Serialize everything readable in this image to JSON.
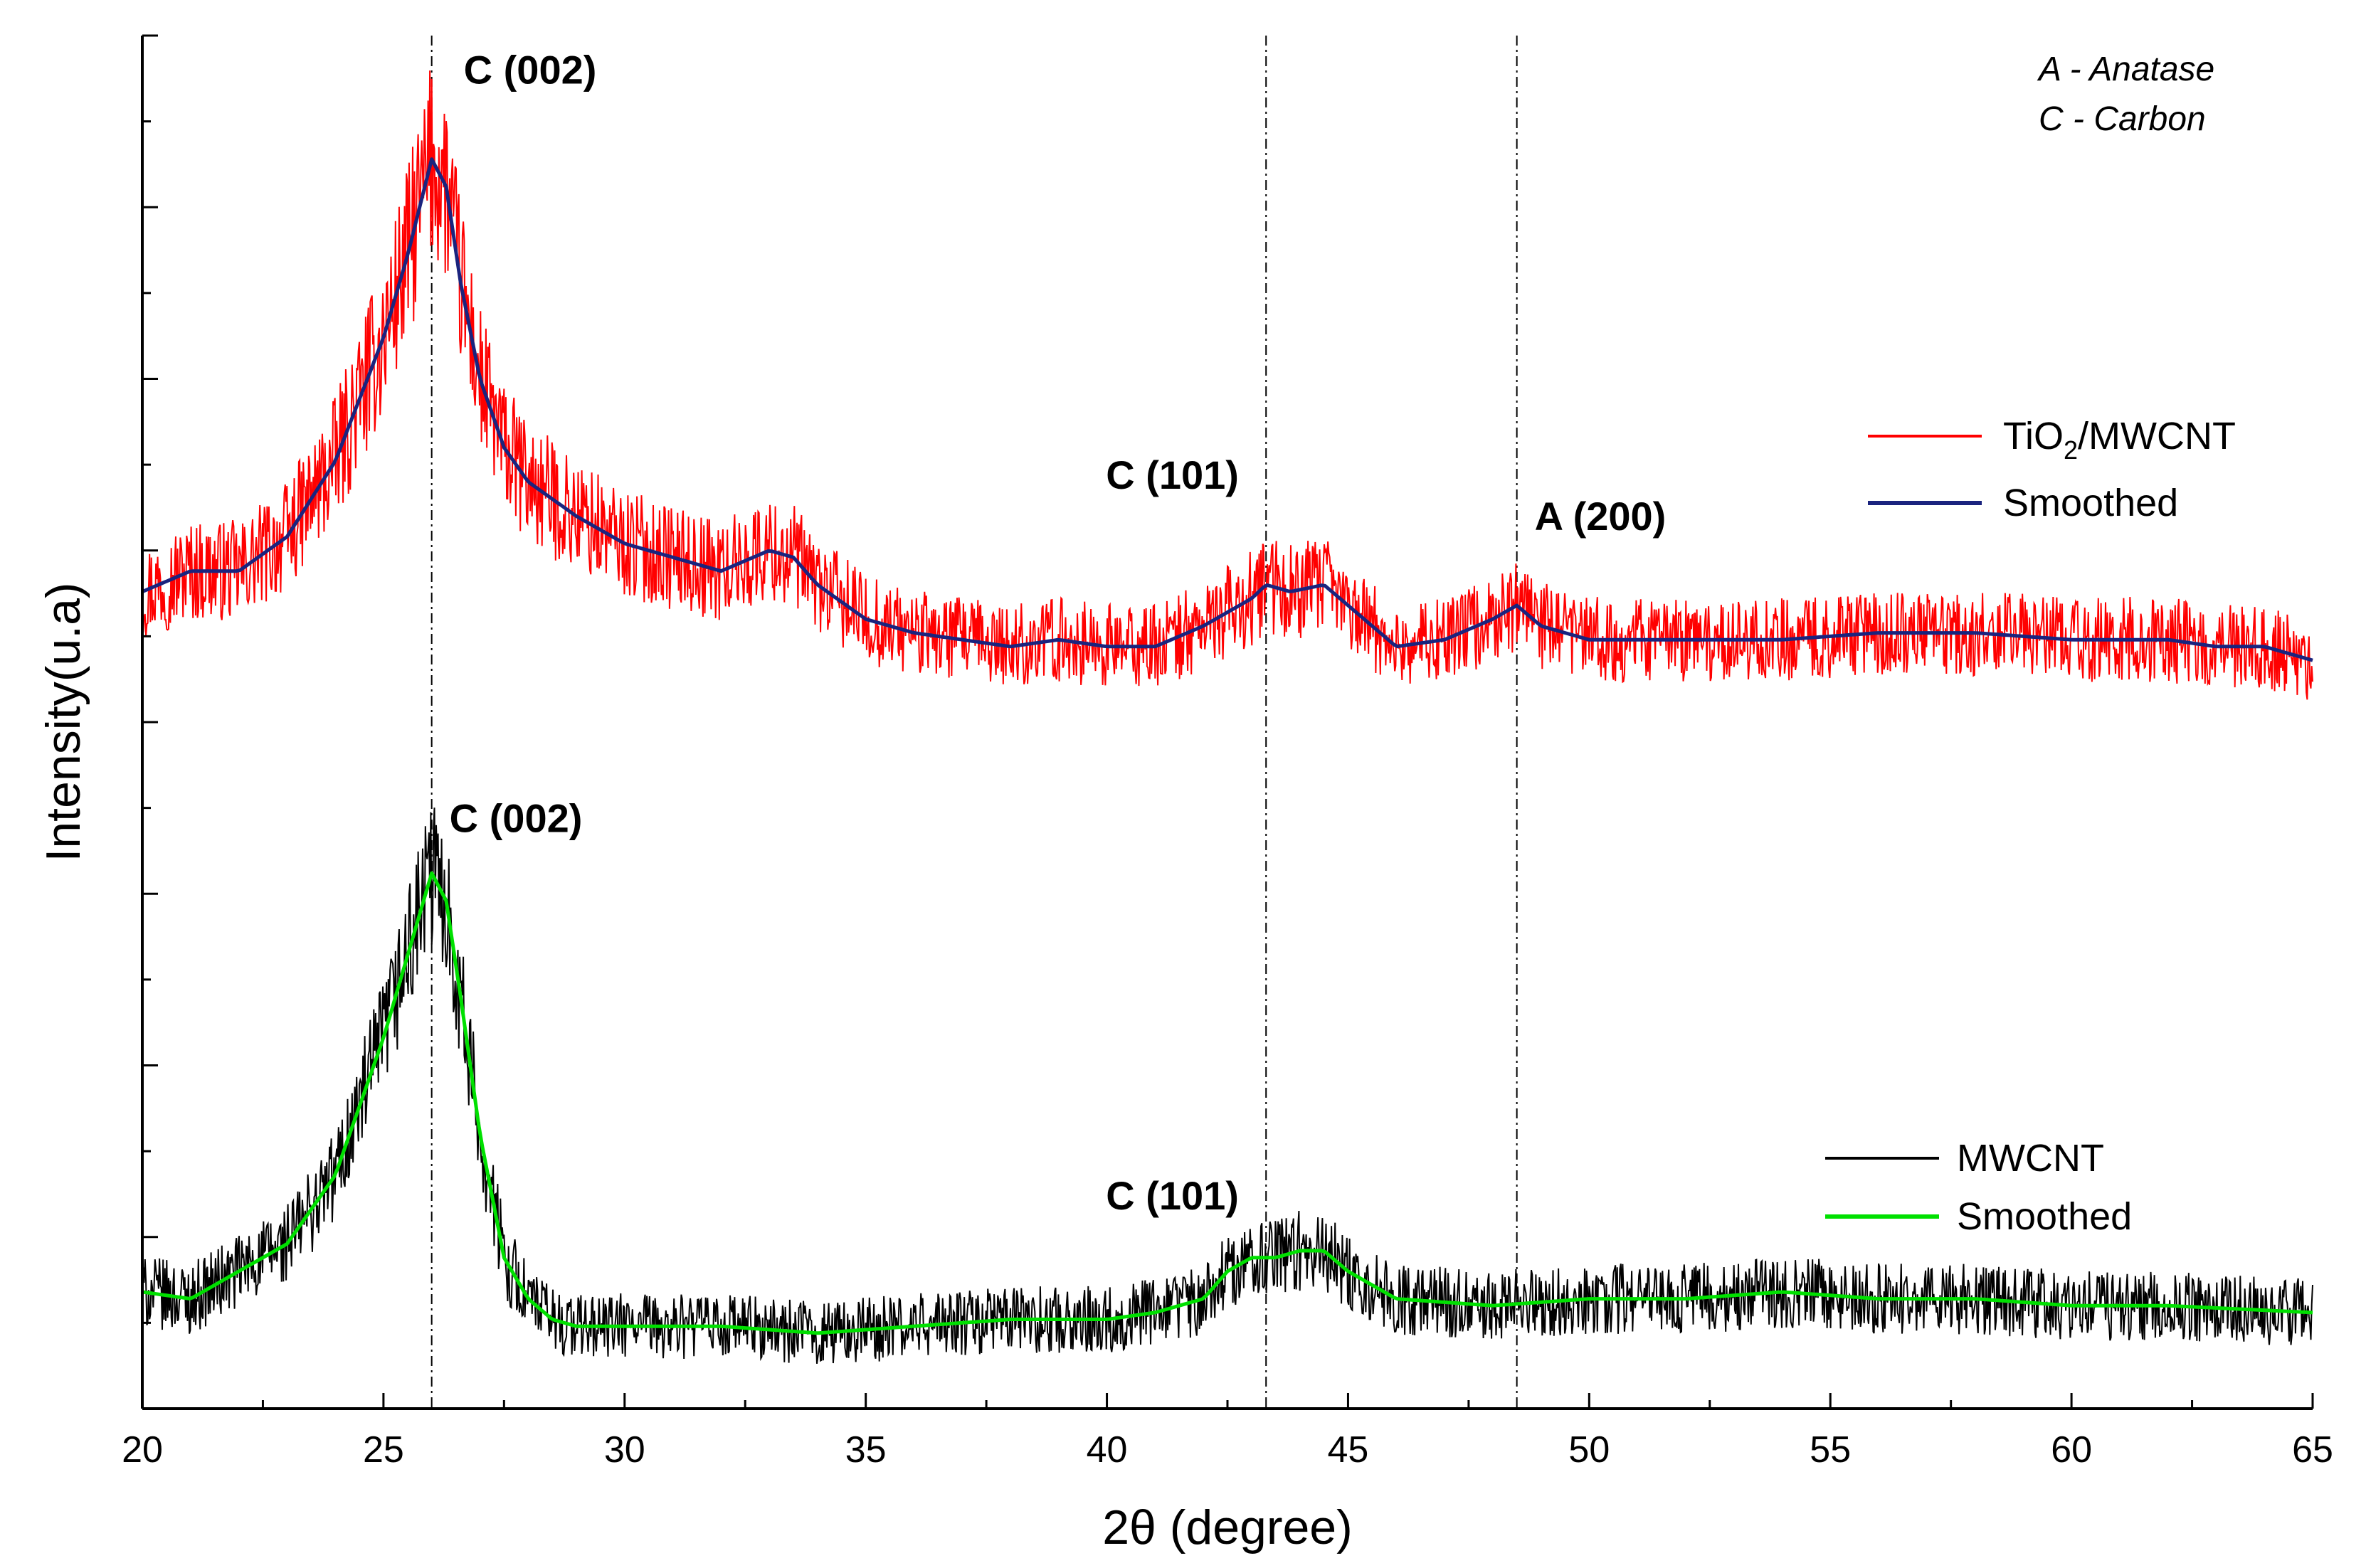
{
  "chart_data": {
    "type": "line",
    "xlabel": "2θ (degree)",
    "ylabel": "Intensity(u.a)",
    "xlim": [
      20,
      65
    ],
    "ylim": [
      0,
      100
    ],
    "x_ticks": [
      20,
      25,
      30,
      35,
      40,
      45,
      50,
      55,
      60,
      65
    ],
    "y_tick_labels_shown": false,
    "grid": false,
    "key": [
      "A  - Anatase",
      "C - Carbon"
    ],
    "reference_lines_x": [
      26.0,
      43.3,
      48.5
    ],
    "peak_labels": [
      {
        "text": "C (002)",
        "x": 26.0,
        "y": 96.5
      },
      {
        "text": "C (101)",
        "x": 43.3,
        "y": 67.0
      },
      {
        "text": "A (200)",
        "x": 48.5,
        "y": 64.0
      },
      {
        "text": "C (002)",
        "x": 26.0,
        "y": 42.0
      },
      {
        "text": "C (101)",
        "x": 43.3,
        "y": 14.5
      }
    ],
    "series": [
      {
        "name": "TiO",
        "name_subscript": "2",
        "name_suffix": "/MWCNT",
        "color": "#ff0000",
        "style": "noisy",
        "noise_amplitude": 3.0,
        "x": [
          20,
          21,
          22,
          23,
          24,
          25,
          25.5,
          26.0,
          26.3,
          26.6,
          27,
          27.5,
          28,
          29,
          30,
          31,
          32,
          33,
          33.5,
          34,
          35,
          36,
          37,
          38,
          39,
          40,
          41,
          42,
          43,
          43.3,
          43.8,
          44.5,
          45,
          46,
          47,
          48,
          48.5,
          49,
          50,
          52,
          54,
          56,
          58,
          60,
          62,
          63,
          64,
          65
        ],
        "y": [
          59.5,
          61,
          61,
          63.5,
          69,
          78,
          84,
          91,
          89,
          82,
          75,
          70,
          67.5,
          65,
          63,
          62,
          61,
          62.5,
          62,
          60,
          57.5,
          56.5,
          56,
          55.5,
          56,
          55.5,
          55.5,
          57,
          59,
          60,
          59.5,
          60,
          58.5,
          55.5,
          56,
          57.5,
          58.5,
          57,
          56,
          56,
          56,
          56.5,
          56.5,
          56,
          56,
          55.5,
          55.5,
          54.5
        ]
      },
      {
        "name": "Smoothed",
        "color": "#1a237e",
        "style": "smooth",
        "x": [
          20,
          21,
          22,
          23,
          24,
          25,
          25.5,
          26.0,
          26.3,
          26.6,
          27,
          27.5,
          28,
          29,
          30,
          31,
          32,
          33,
          33.5,
          34,
          35,
          36,
          37,
          38,
          39,
          40,
          41,
          42,
          43,
          43.3,
          43.8,
          44.5,
          45,
          46,
          47,
          48,
          48.5,
          49,
          50,
          52,
          54,
          56,
          58,
          60,
          62,
          63,
          64,
          65
        ],
        "y": [
          59.5,
          61,
          61,
          63.5,
          69,
          78,
          84,
          91,
          89,
          82,
          75,
          70,
          67.5,
          65,
          63,
          62,
          61,
          62.5,
          62,
          60,
          57.5,
          56.5,
          56,
          55.5,
          56,
          55.5,
          55.5,
          57,
          59,
          60,
          59.5,
          60,
          58.5,
          55.5,
          56,
          57.5,
          58.5,
          57,
          56,
          56,
          56,
          56.5,
          56.5,
          56,
          56,
          55.5,
          55.5,
          54.5
        ]
      },
      {
        "name": "MWCNT",
        "color": "#000000",
        "style": "noisy",
        "noise_amplitude": 2.4,
        "x": [
          20,
          21,
          22,
          23,
          24,
          25,
          25.5,
          26.0,
          26.3,
          26.6,
          27,
          27.5,
          28,
          28.5,
          29,
          30,
          32,
          34,
          36,
          38,
          40,
          41,
          42,
          42.5,
          43,
          43.5,
          44,
          44.5,
          45,
          46,
          48,
          50,
          52,
          54,
          56,
          58,
          60,
          62,
          65
        ],
        "y": [
          8.5,
          8,
          10,
          12,
          17,
          27,
          33,
          39,
          37,
          30,
          20,
          11,
          8,
          6.5,
          6,
          6,
          6,
          5.5,
          6,
          6.5,
          6.5,
          7,
          8,
          10,
          11,
          11,
          11.5,
          11.5,
          10,
          8,
          7.5,
          8,
          8,
          8.5,
          8,
          8,
          7.5,
          7.5,
          7
        ]
      },
      {
        "name": "Smoothed",
        "color": "#00e000",
        "style": "smooth",
        "x": [
          20,
          21,
          22,
          23,
          24,
          25,
          25.5,
          26.0,
          26.3,
          26.6,
          27,
          27.5,
          28,
          28.5,
          29,
          30,
          32,
          34,
          36,
          38,
          40,
          41,
          42,
          42.5,
          43,
          43.5,
          44,
          44.5,
          45,
          46,
          48,
          50,
          52,
          54,
          56,
          58,
          60,
          62,
          65
        ],
        "y": [
          8.5,
          8,
          10,
          12,
          17,
          27,
          33,
          39,
          37,
          30,
          20,
          11,
          8,
          6.5,
          6,
          6,
          6,
          5.5,
          6,
          6.5,
          6.5,
          7,
          8,
          10,
          11,
          11,
          11.5,
          11.5,
          10,
          8,
          7.5,
          8,
          8,
          8.5,
          8,
          8,
          7.5,
          7.5,
          7
        ]
      }
    ]
  }
}
